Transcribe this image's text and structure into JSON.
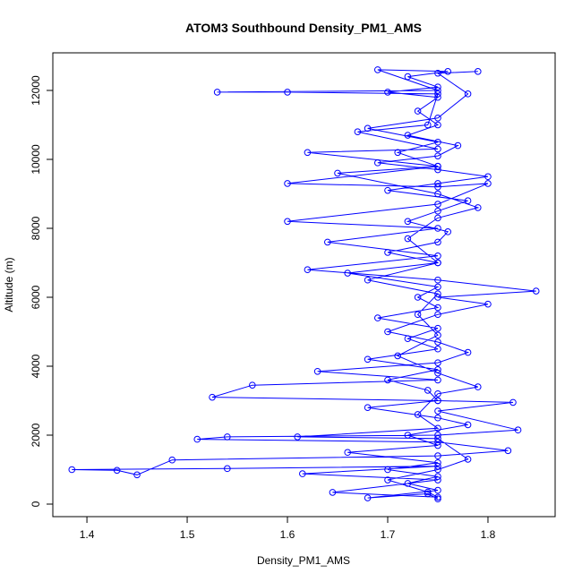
{
  "chart_data": {
    "type": "scatter",
    "lines": true,
    "title": "ATOM3 Southbound Density_PM1_AMS",
    "x_label": "Density_PM1_AMS",
    "y_label": "Altitude (m)",
    "xlim": [
      1.366,
      1.867
    ],
    "ylim": [
      -364,
      13091
    ],
    "xticks": [
      1.4,
      1.5,
      1.6,
      1.7,
      1.8
    ],
    "yticks": [
      0,
      2000,
      4000,
      6000,
      8000,
      10000,
      12000
    ],
    "series": [
      {
        "color": "#0000ff",
        "x": [
          1.75,
          1.74,
          1.68,
          1.75,
          1.72,
          1.75,
          1.7,
          1.75,
          1.66,
          1.75,
          1.72,
          1.78,
          1.75,
          1.68,
          1.75,
          1.74,
          1.7,
          1.75,
          1.68,
          1.75,
          1.72,
          1.75,
          1.69,
          1.75,
          1.73,
          1.75,
          1.66,
          1.75,
          1.7,
          1.75,
          1.76,
          1.72,
          1.75,
          1.78,
          1.7,
          1.75,
          1.8,
          1.75,
          1.69,
          1.75,
          1.77,
          1.72,
          1.75,
          1.73,
          1.75,
          1.7,
          1.75,
          1.72,
          1.76,
          1.69,
          1.75,
          1.53,
          1.6,
          1.75,
          1.74,
          1.67,
          1.75,
          1.62,
          1.75,
          1.6,
          1.75,
          1.8,
          1.75,
          1.6,
          1.75,
          1.64,
          1.75,
          1.62,
          1.75,
          1.848,
          1.75,
          1.8,
          1.75,
          1.7,
          1.75,
          1.78,
          1.75,
          1.63,
          1.75,
          1.565,
          1.525,
          1.75,
          1.825,
          1.75,
          1.83,
          1.75,
          1.54,
          1.51,
          1.75,
          1.82,
          1.75,
          1.485,
          1.45,
          1.43,
          1.385,
          1.54,
          1.75,
          1.615,
          1.75,
          1.645,
          1.75,
          1.74,
          1.7,
          1.75,
          1.78,
          1.75,
          1.61,
          1.75,
          1.73,
          1.75,
          1.79,
          1.75,
          1.71,
          1.75,
          1.73,
          1.75,
          1.68,
          1.75,
          1.72,
          1.75,
          1.79,
          1.75,
          1.65,
          1.75,
          1.71,
          1.75,
          1.68,
          1.75,
          1.78,
          1.75,
          1.79
        ],
        "values": [
          150,
          300,
          180,
          400,
          600,
          800,
          1000,
          1200,
          1500,
          1700,
          2000,
          2300,
          2500,
          2800,
          3000,
          3300,
          3600,
          3900,
          4200,
          4500,
          4800,
          5100,
          5400,
          5700,
          6000,
          6300,
          6700,
          7000,
          7300,
          7600,
          7900,
          8200,
          8500,
          8800,
          9100,
          9300,
          9500,
          9700,
          9900,
          10100,
          10400,
          10700,
          11000,
          11400,
          11800,
          11950,
          12100,
          12400,
          12550,
          12600,
          12000,
          11950,
          11950,
          11900,
          11000,
          10800,
          10300,
          10200,
          9800,
          9300,
          9200,
          9300,
          8700,
          8200,
          8000,
          7600,
          7200,
          6800,
          6500,
          6180,
          6000,
          5800,
          5500,
          5000,
          4700,
          4400,
          4100,
          3850,
          3600,
          3450,
          3100,
          3000,
          2950,
          2700,
          2150,
          2000,
          1950,
          1880,
          1800,
          1550,
          1400,
          1280,
          850,
          980,
          1000,
          1030,
          1100,
          880,
          700,
          340,
          200,
          350,
          700,
          1000,
          1300,
          1900,
          1950,
          2200,
          2600,
          3200,
          3400,
          3800,
          4300,
          4900,
          5500,
          6100,
          6500,
          7000,
          7700,
          8300,
          8600,
          9000,
          9600,
          9800,
          10200,
          10500,
          10900,
          11200,
          11900,
          12500,
          12550
        ]
      }
    ]
  }
}
